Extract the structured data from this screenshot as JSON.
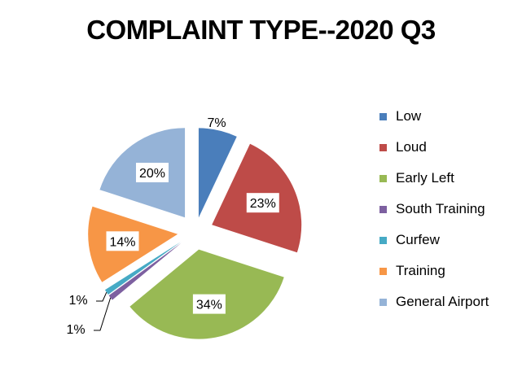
{
  "chart_data": {
    "type": "pie",
    "title": "COMPLAINT TYPE--2020 Q3",
    "legend_position": "right",
    "slices": [
      {
        "name": "Low",
        "value": 7,
        "label": "7%",
        "color": "#4A7EBB"
      },
      {
        "name": "Loud",
        "value": 23,
        "label": "23%",
        "color": "#BE4B48"
      },
      {
        "name": "Early Left",
        "value": 34,
        "label": "34%",
        "color": "#98B954"
      },
      {
        "name": "South Training",
        "value": 1,
        "label": "1%",
        "color": "#7D60A0"
      },
      {
        "name": "Curfew",
        "value": 1,
        "label": "1%",
        "color": "#46AAC5"
      },
      {
        "name": "Training",
        "value": 14,
        "label": "14%",
        "color": "#F79646"
      },
      {
        "name": "General Airport",
        "value": 20,
        "label": "20%",
        "color": "#95B3D7"
      }
    ]
  }
}
